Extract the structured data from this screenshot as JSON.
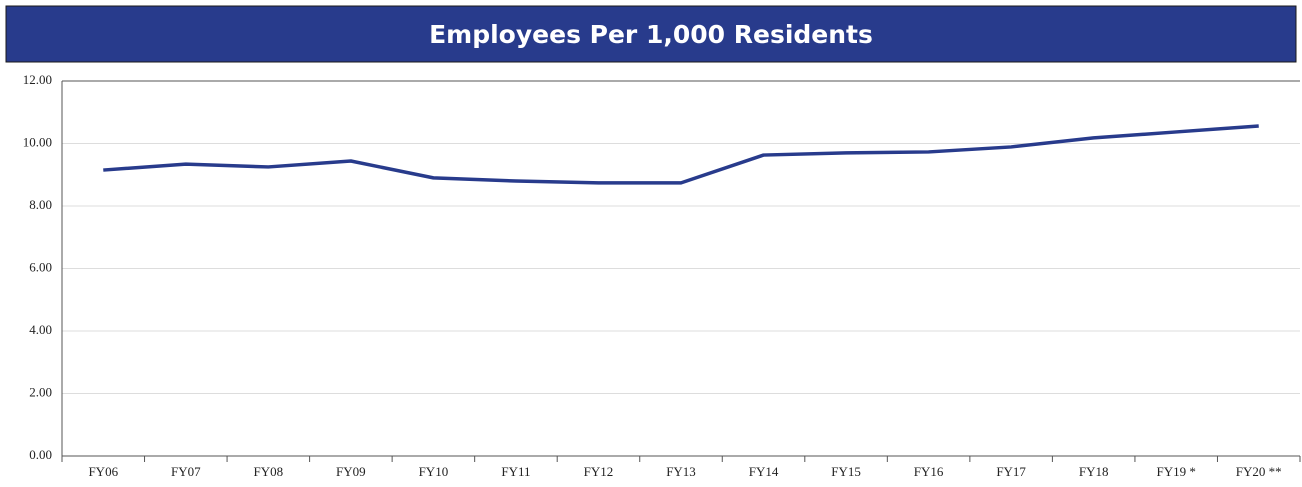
{
  "chart_data": {
    "type": "line",
    "title": "Employees Per 1,000 Residents",
    "categories": [
      "FY06",
      "FY07",
      "FY08",
      "FY09",
      "FY10",
      "FY11",
      "FY12",
      "FY13",
      "FY14",
      "FY15",
      "FY16",
      "FY17",
      "FY18",
      "FY19 *",
      "FY20 **"
    ],
    "series": [
      {
        "name": "Employees Per 1,000 Residents",
        "color": "#283b8c",
        "values": [
          9.15,
          9.34,
          9.25,
          9.44,
          8.9,
          8.8,
          8.74,
          8.74,
          9.63,
          9.7,
          9.73,
          9.89,
          10.18,
          10.37,
          10.56
        ]
      }
    ],
    "ylim": [
      0,
      12
    ],
    "yticks": [
      {
        "value": 0,
        "label": "0.00"
      },
      {
        "value": 2,
        "label": "2.00"
      },
      {
        "value": 4,
        "label": "4.00"
      },
      {
        "value": 6,
        "label": "6.00"
      },
      {
        "value": 8,
        "label": "8.00"
      },
      {
        "value": 10,
        "label": "10.00"
      },
      {
        "value": 12,
        "label": "12.00"
      }
    ],
    "grid": true
  }
}
